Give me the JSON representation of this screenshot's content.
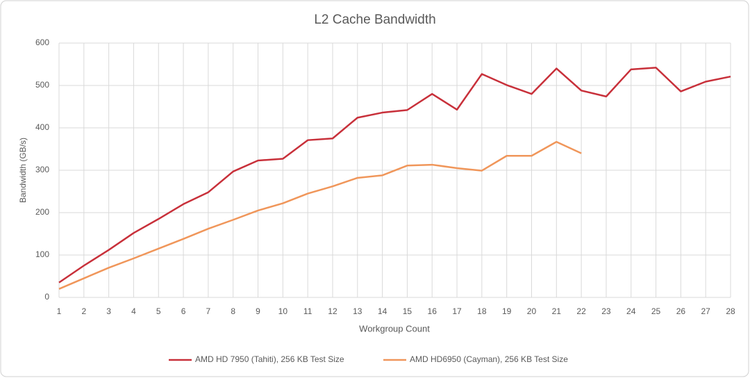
{
  "chart_data": {
    "type": "line",
    "title": "L2 Cache Bandwidth",
    "x_label": "Workgroup Count",
    "y_label": "Bandwidth (GB/s)",
    "x": [
      1,
      2,
      3,
      4,
      5,
      6,
      7,
      8,
      9,
      10,
      11,
      12,
      13,
      14,
      15,
      16,
      17,
      18,
      19,
      20,
      21,
      22,
      23,
      24,
      25,
      26,
      27,
      28
    ],
    "xlim": [
      1,
      28
    ],
    "xticks": [
      1,
      2,
      3,
      4,
      5,
      6,
      7,
      8,
      9,
      10,
      11,
      12,
      13,
      14,
      15,
      16,
      17,
      18,
      19,
      20,
      21,
      22,
      23,
      24,
      25,
      26,
      27,
      28
    ],
    "ylim": [
      0,
      600
    ],
    "yticks": [
      0,
      100,
      200,
      300,
      400,
      500,
      600
    ],
    "grid": true,
    "legend": "bottom",
    "series": [
      {
        "name": "AMD HD 7950 (Tahiti), 256 KB Test Size",
        "color": "#c8303a",
        "values": [
          35,
          75,
          112,
          152,
          185,
          220,
          248,
          297,
          323,
          327,
          371,
          375,
          424,
          436,
          442,
          480,
          443,
          527,
          501,
          480,
          540,
          488,
          474,
          538,
          542,
          486,
          509,
          521
        ]
      },
      {
        "name": "AMD HD6950 (Cayman), 256 KB Test Size",
        "color": "#f0965a",
        "values": [
          20,
          45,
          70,
          92,
          115,
          138,
          162,
          183,
          205,
          222,
          245,
          262,
          282,
          288,
          311,
          313,
          305,
          299,
          334,
          334,
          367,
          340,
          null,
          null,
          null,
          null,
          null,
          null
        ]
      }
    ]
  }
}
